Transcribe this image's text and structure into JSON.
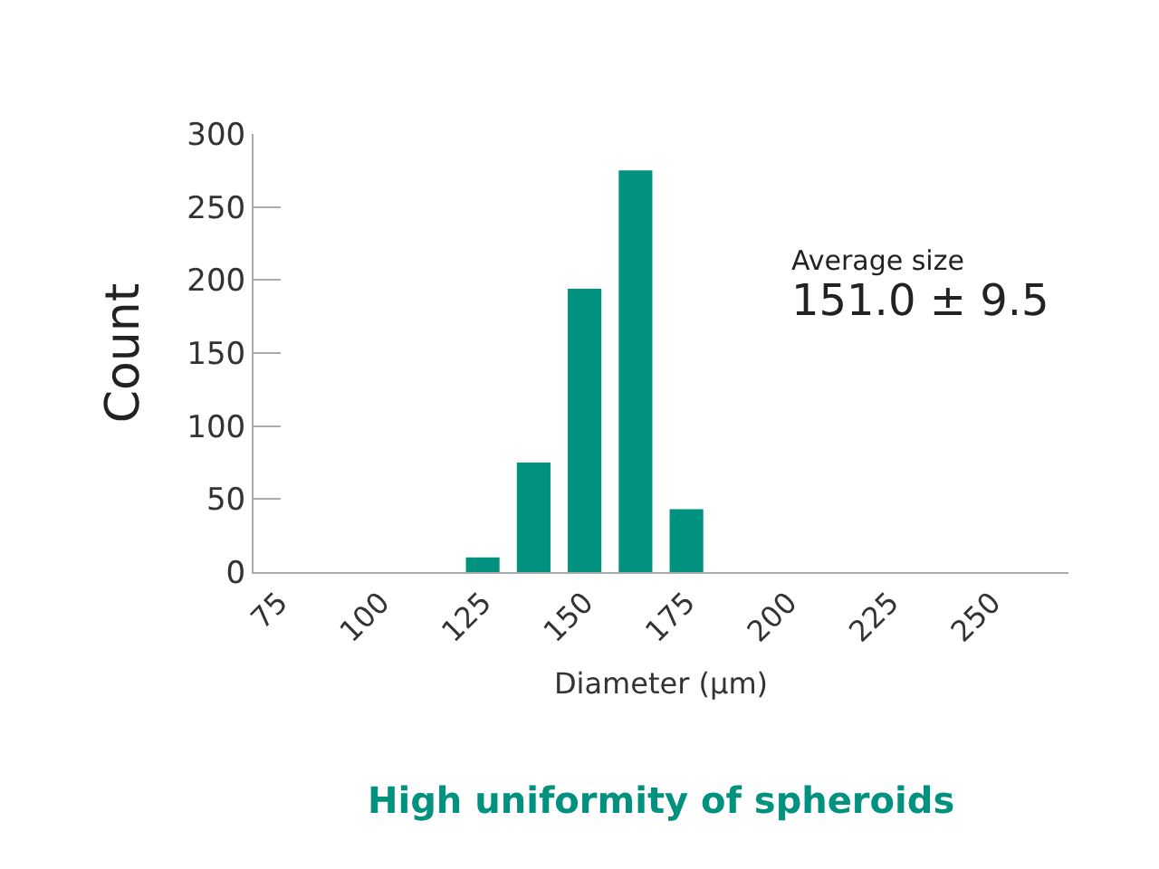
{
  "chart_data": {
    "type": "bar",
    "title": "High uniformity of spheroids",
    "xlabel": "Diameter (μm)",
    "ylabel": "Count",
    "categories": [
      "75",
      null,
      "100",
      null,
      "125",
      null,
      "150",
      null,
      "175",
      null,
      "200",
      null,
      "225",
      null,
      "250",
      null
    ],
    "values": [
      0,
      0,
      0,
      0,
      10,
      75,
      194,
      275,
      43,
      0,
      0,
      0,
      0,
      0,
      0,
      0
    ],
    "color": "#00917f",
    "ylim": [
      0,
      300
    ],
    "yticks": [
      0,
      50,
      100,
      150,
      200,
      250,
      300
    ],
    "legend": false,
    "annotations": [
      "Average size",
      "151.0 ± 9.5"
    ]
  }
}
